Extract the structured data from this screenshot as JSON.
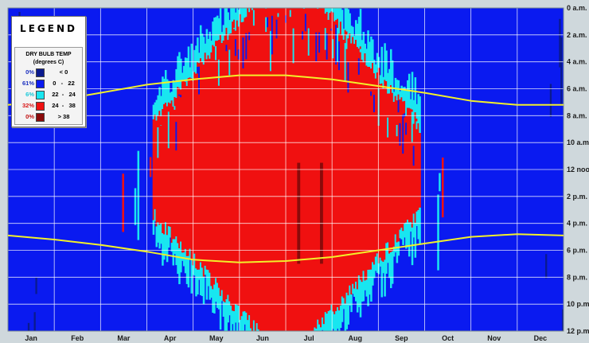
{
  "legend": {
    "title": "LEGEND",
    "heading_line1": "DRY BULB TEMP",
    "heading_line2": "(degrees C)",
    "items": [
      {
        "pct": "0%",
        "range": "< 0",
        "color": "#0a1a8f",
        "pct_color": "#1a2fbf"
      },
      {
        "pct": "61%",
        "range": "0   -   22",
        "color": "#0a1af0",
        "pct_color": "#1a2fbf"
      },
      {
        "pct": "6%",
        "range": "22  -   24",
        "color": "#19e6f0",
        "pct_color": "#19c8d8"
      },
      {
        "pct": "32%",
        "range": "24  -   38",
        "color": "#f01010",
        "pct_color": "#d81818"
      },
      {
        "pct": "0%",
        "range": "> 38",
        "color": "#8a0a0a",
        "pct_color": "#c01010"
      }
    ]
  },
  "chart_data": {
    "type": "heatmap",
    "title": "",
    "x_tick_labels": [
      "Jan",
      "Feb",
      "Mar",
      "Apr",
      "May",
      "Jun",
      "Jul",
      "Aug",
      "Sep",
      "Oct",
      "Nov",
      "Dec"
    ],
    "y_tick_labels": [
      "0 a.m.",
      "2 a.m.",
      "4 a.m.",
      "6 a.m.",
      "8 a.m.",
      "10 a.m.",
      "12 noon",
      "2 p.m.",
      "4 p.m.",
      "6 p.m.",
      "8 p.m.",
      "10 p.m.",
      "12 p.m."
    ],
    "ylim_hours": [
      0,
      24
    ],
    "grid": true,
    "legend_placement": "top-left",
    "series": [
      {
        "name": "sunrise",
        "color": "#f2f02a",
        "x_month": [
          0,
          1,
          2,
          3,
          4,
          5,
          6,
          7,
          8,
          9,
          10,
          11,
          12
        ],
        "hour": [
          7.2,
          6.9,
          6.3,
          5.7,
          5.3,
          5.0,
          5.0,
          5.3,
          5.8,
          6.3,
          6.9,
          7.2,
          7.2
        ]
      },
      {
        "name": "sunset",
        "color": "#f2f02a",
        "x_month": [
          0,
          1,
          2,
          3,
          4,
          5,
          6,
          7,
          8,
          9,
          10,
          11,
          12
        ],
        "hour": [
          16.9,
          17.2,
          17.6,
          18.1,
          18.7,
          18.9,
          18.8,
          18.5,
          18.0,
          17.5,
          17.0,
          16.8,
          16.9
        ]
      }
    ],
    "colors": {
      "blue": "#0a1af0",
      "cyan": "#19e6f0",
      "red": "#f01010",
      "darkred": "#8a0a0a",
      "darkblue": "#0a1a8f",
      "grid": "#ffffff"
    }
  }
}
